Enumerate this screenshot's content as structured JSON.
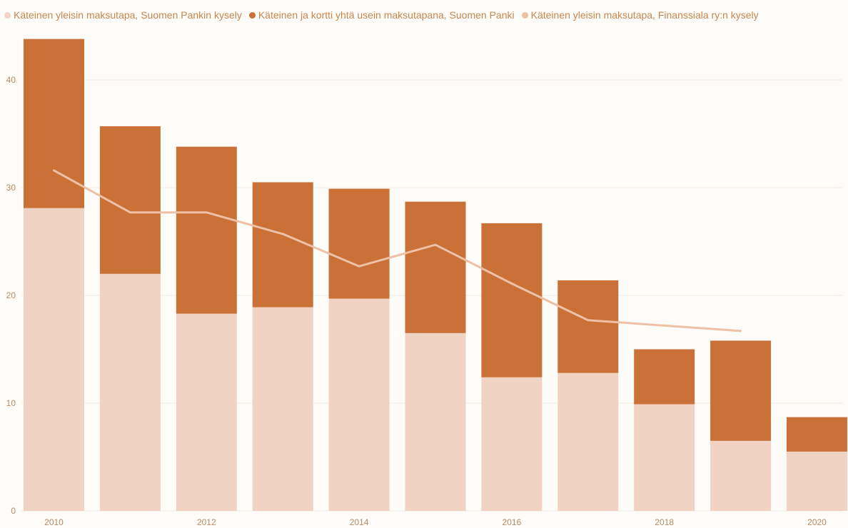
{
  "chart_data": {
    "type": "bar",
    "stacked": true,
    "categories": [
      "2010",
      "2011",
      "2012",
      "2013",
      "2014",
      "2015",
      "2016",
      "2017",
      "2018",
      "2019",
      "2020"
    ],
    "x_tick_labels": [
      "2010",
      "2012",
      "2014",
      "2016",
      "2018",
      "2020"
    ],
    "y_ticks": [
      0,
      10,
      20,
      30,
      40
    ],
    "ylim": [
      0,
      44
    ],
    "grid": true,
    "legend_position": "top-left",
    "series": [
      {
        "name": "Käteinen yleisin maksutapa, Suomen Pankin kysely",
        "kind": "bar",
        "color": "#f0d3c3",
        "values": [
          28.1,
          22.0,
          18.3,
          18.9,
          19.7,
          16.5,
          12.4,
          12.8,
          9.9,
          6.5,
          5.5
        ]
      },
      {
        "name": "Käteinen ja kortti yhtä usein maksutapana, Suomen Panki",
        "kind": "bar",
        "color": "#c97137",
        "values": [
          15.7,
          13.7,
          15.5,
          11.6,
          10.2,
          12.2,
          14.3,
          8.6,
          5.1,
          9.3,
          3.2
        ]
      },
      {
        "name": "Käteinen yleisin maksutapa, Finanssiala ry:n kysely",
        "kind": "line",
        "color": "#eec0a5",
        "values": [
          31.6,
          27.7,
          27.7,
          25.7,
          22.7,
          24.7,
          21.1,
          17.7,
          null,
          16.7,
          null
        ]
      }
    ]
  }
}
